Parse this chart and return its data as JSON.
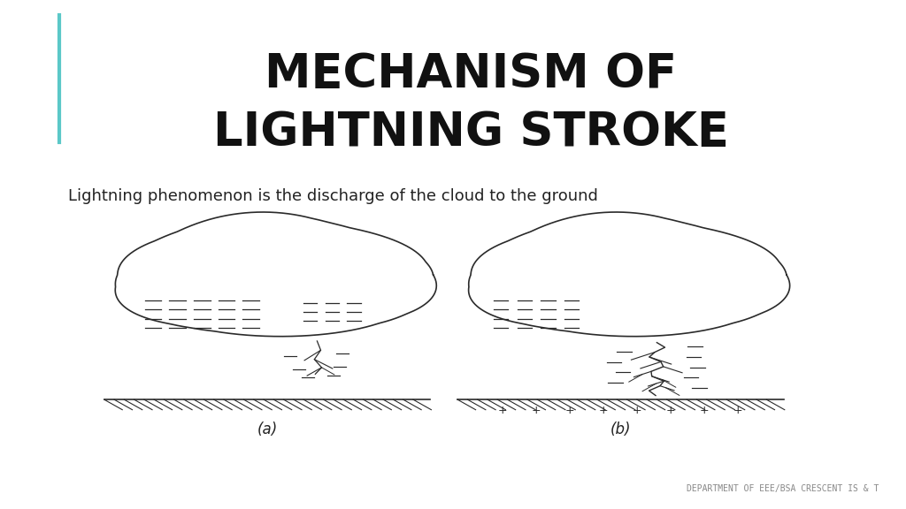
{
  "title_line1": "MECHANISM OF",
  "title_line2": "LIGHTNING STROKE",
  "subtitle": "Lightning phenomenon is the discharge of the cloud to the ground",
  "label_a": "(a)",
  "label_b": "(b)",
  "footer": "DEPARTMENT OF EEE/BSA CRESCENT IS & T",
  "bg_color": "#ffffff",
  "title_color": "#111111",
  "subtitle_color": "#222222",
  "accent_line_color": "#5bc8c8",
  "diagram_color": "#2a2a2a"
}
